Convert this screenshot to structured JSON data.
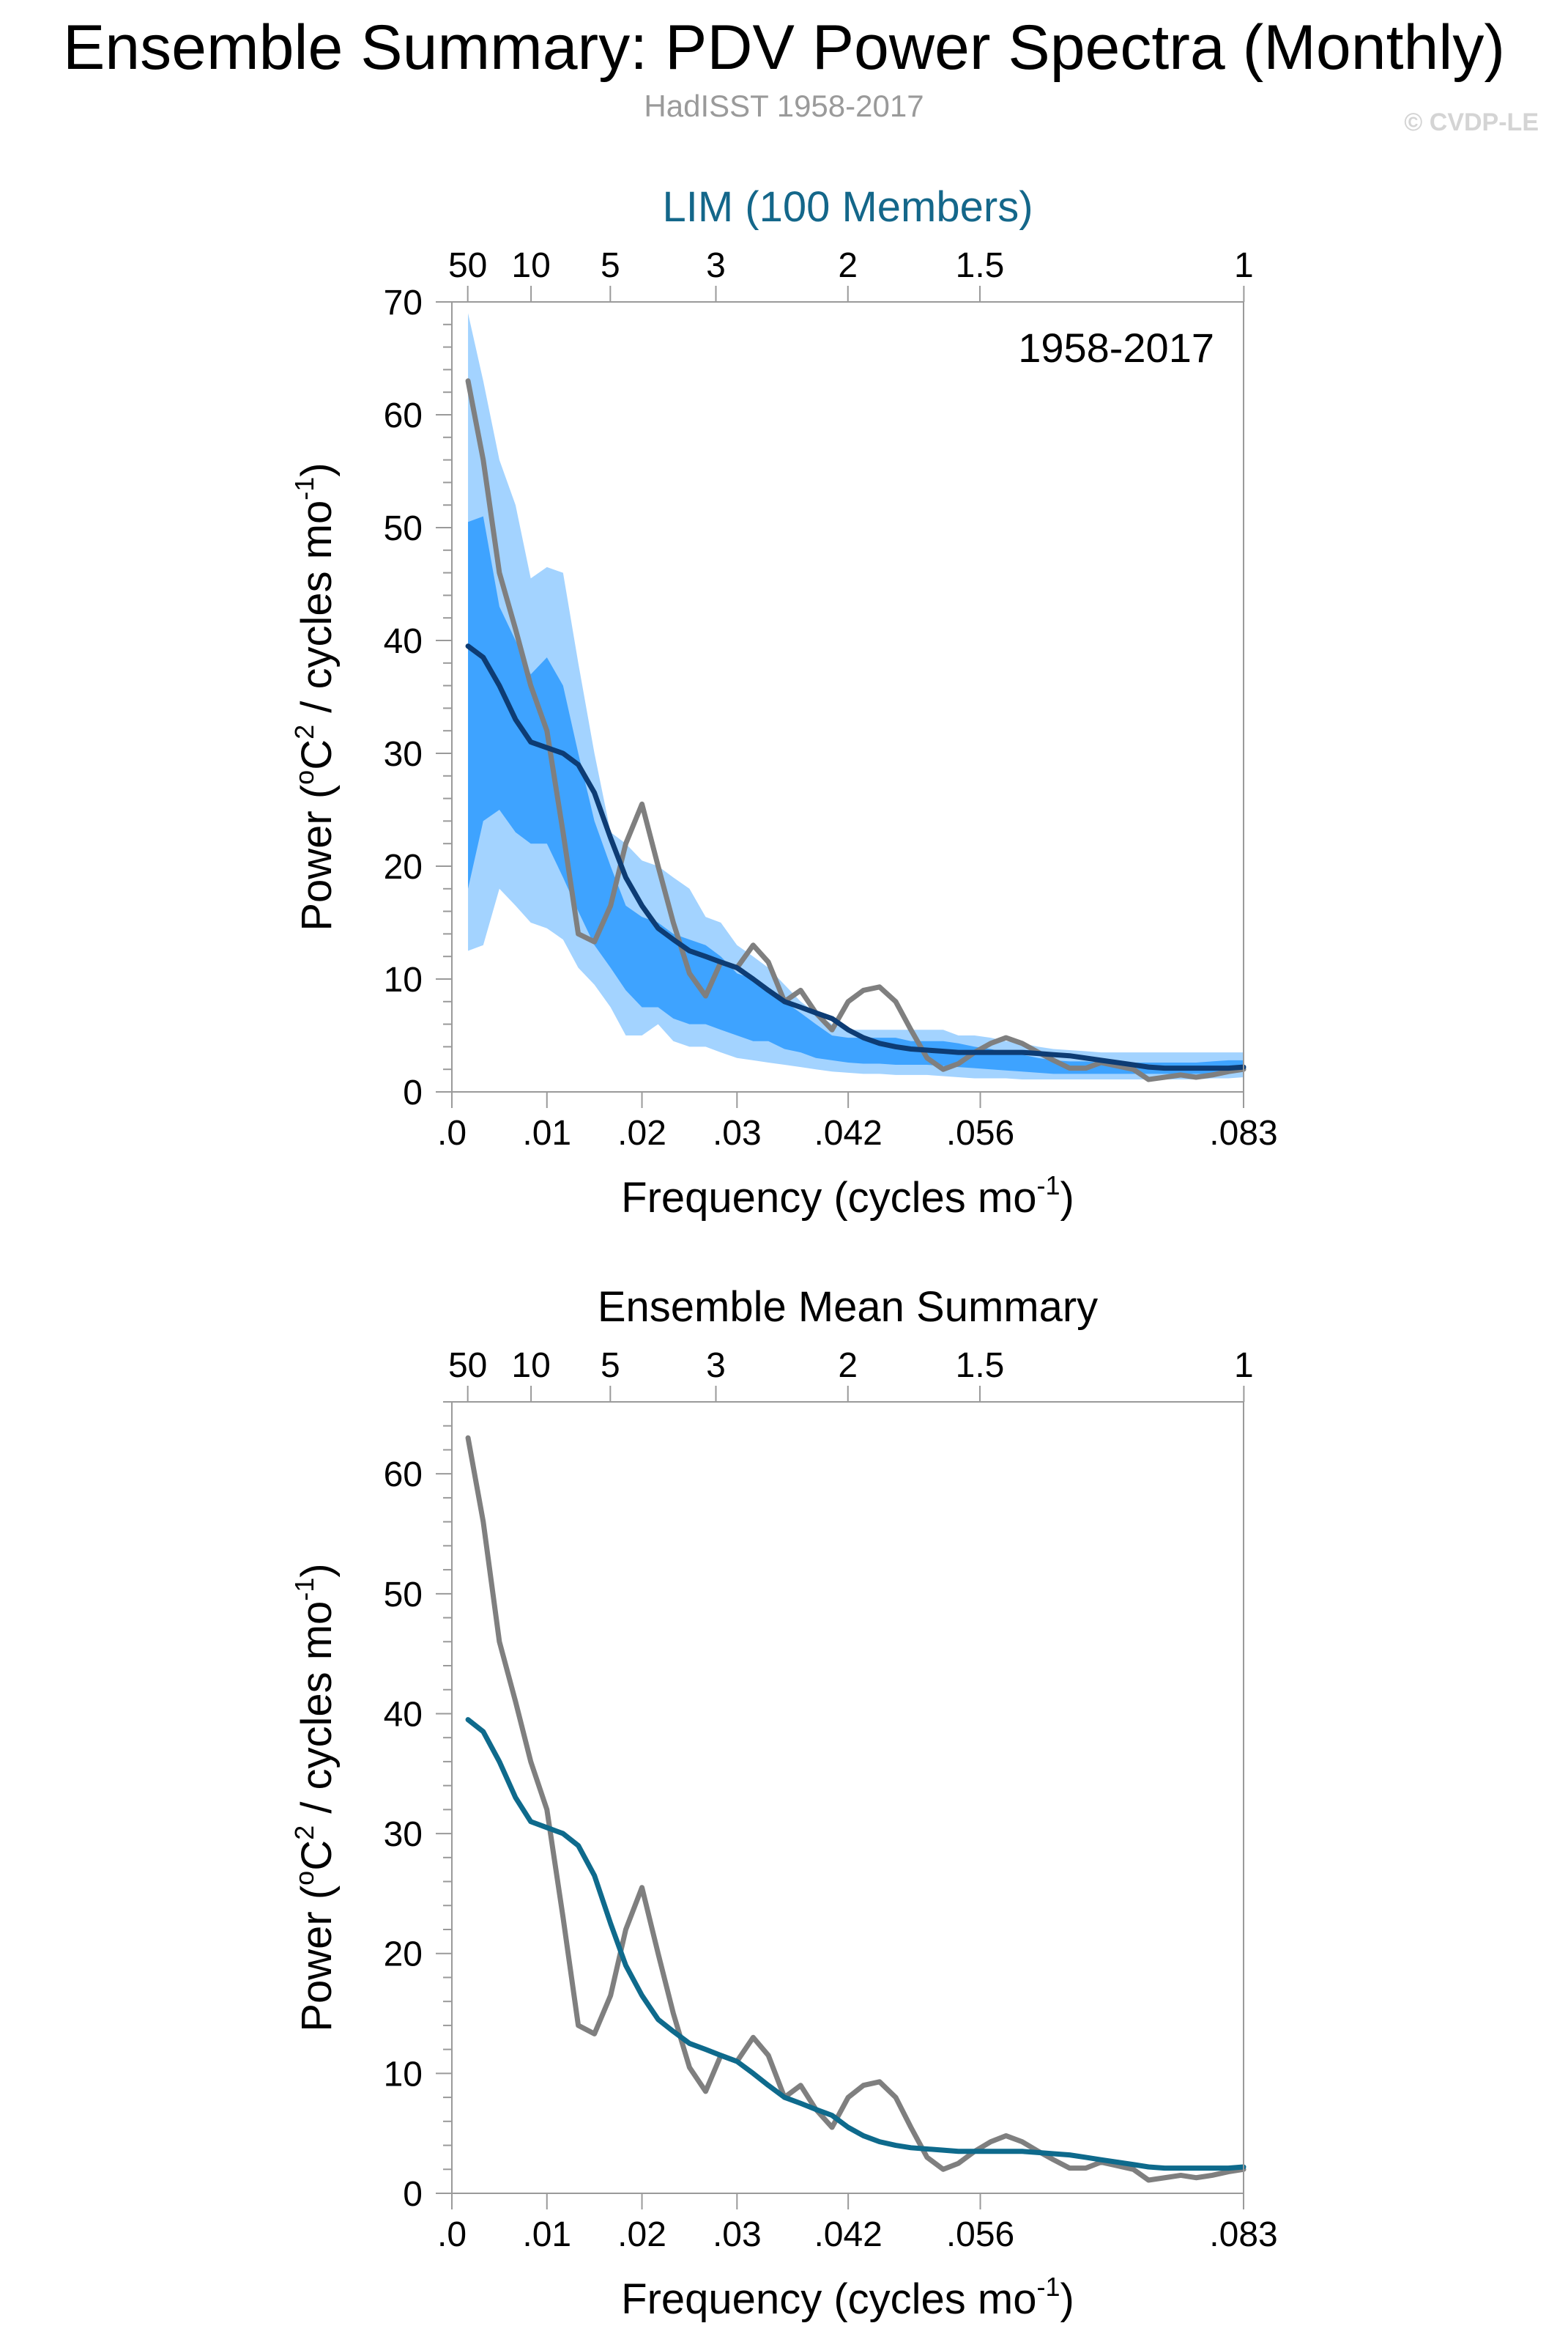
{
  "header": {
    "title": "Ensemble Summary: PDV Power Spectra (Monthly)",
    "subtitle": "HadISST 1958-2017",
    "copyright": "© CVDP-LE"
  },
  "colors": {
    "outer_band": "#a3d3ff",
    "inner_band": "#3ea3ff",
    "panel1_mean": "#0d3c74",
    "panel2_mean": "#0e6a8c",
    "observed": "#7f7f7f",
    "panel1_title": "#14678a"
  },
  "chart_data": [
    {
      "type": "line",
      "title": "LIM (100 Members)",
      "annotation": "1958-2017",
      "xlabel": "Frequency (cycles mo",
      "xlabel_sup": "-1",
      "xlabel_end": ")",
      "ylabel": "Power (",
      "ylabel_sup1": "o",
      "ylabel_mid": "C",
      "ylabel_sup2": "2",
      "ylabel_mid2": " / cycles mo",
      "ylabel_sup3": "-1",
      "ylabel_end": ")",
      "xlim": [
        0,
        0.0833
      ],
      "ylim": [
        0,
        70
      ],
      "x_ticks": [
        {
          "v": 0,
          "label": ".0"
        },
        {
          "v": 0.01,
          "label": ".01"
        },
        {
          "v": 0.02,
          "label": ".02"
        },
        {
          "v": 0.03,
          "label": ".03"
        },
        {
          "v": 0.0417,
          "label": ".042"
        },
        {
          "v": 0.0556,
          "label": ".056"
        },
        {
          "v": 0.0833,
          "label": ".083"
        }
      ],
      "top_ticks": [
        {
          "v": 0.00167,
          "label": "50"
        },
        {
          "v": 0.00833,
          "label": "10"
        },
        {
          "v": 0.01667,
          "label": "5"
        },
        {
          "v": 0.02778,
          "label": "3"
        },
        {
          "v": 0.04167,
          "label": "2"
        },
        {
          "v": 0.05556,
          "label": "1.5"
        },
        {
          "v": 0.08333,
          "label": "1"
        }
      ],
      "y_ticks": [
        0,
        10,
        20,
        30,
        40,
        50,
        60,
        70
      ],
      "x": [
        0.0017,
        0.0033,
        0.005,
        0.0067,
        0.0083,
        0.01,
        0.0117,
        0.0133,
        0.015,
        0.0167,
        0.0183,
        0.02,
        0.0217,
        0.0233,
        0.025,
        0.0267,
        0.0283,
        0.03,
        0.0317,
        0.0333,
        0.035,
        0.0367,
        0.0383,
        0.04,
        0.0417,
        0.0433,
        0.045,
        0.0467,
        0.0483,
        0.05,
        0.0517,
        0.0533,
        0.055,
        0.0567,
        0.0583,
        0.06,
        0.0617,
        0.0633,
        0.065,
        0.0667,
        0.0683,
        0.07,
        0.0717,
        0.0733,
        0.075,
        0.0767,
        0.0783,
        0.08,
        0.0817,
        0.0833
      ],
      "series": [
        {
          "role": "outer_upper",
          "values": [
            69,
            63,
            56,
            52,
            45.5,
            46.5,
            46,
            38,
            30,
            23,
            22,
            20.5,
            20,
            19,
            18,
            15.5,
            15,
            13,
            12,
            11,
            9.5,
            8,
            7,
            6,
            5.5,
            5.5,
            5.5,
            5.5,
            5.5,
            5.5,
            5.5,
            5,
            5,
            4.8,
            4.5,
            4.3,
            4,
            3.8,
            3.7,
            3.6,
            3.5,
            3.5,
            3.5,
            3.5,
            3.5,
            3.5,
            3.5,
            3.5,
            3.5,
            3.5
          ]
        },
        {
          "role": "inner_upper",
          "values": [
            50.5,
            51,
            43,
            40,
            37,
            38.5,
            36,
            30,
            24,
            20,
            16.5,
            15.5,
            15,
            14,
            13.5,
            13,
            12,
            10.5,
            10,
            9,
            8,
            7,
            6,
            5,
            4.8,
            4.8,
            4.8,
            4.8,
            4.5,
            4.5,
            4.5,
            4.3,
            4,
            3.8,
            3.5,
            3.3,
            3,
            2.8,
            2.7,
            2.7,
            2.6,
            2.6,
            2.6,
            2.6,
            2.6,
            2.6,
            2.6,
            2.7,
            2.8,
            2.8
          ]
        },
        {
          "role": "inner_lower",
          "values": [
            18,
            24,
            25,
            23,
            22,
            22,
            19,
            16,
            13,
            11,
            9,
            7.5,
            7.5,
            6.5,
            6,
            6,
            5.5,
            5,
            4.5,
            4.5,
            3.8,
            3.5,
            3,
            2.8,
            2.6,
            2.5,
            2.5,
            2.4,
            2.4,
            2.4,
            2.3,
            2.2,
            2.1,
            2,
            1.9,
            1.8,
            1.7,
            1.6,
            1.6,
            1.6,
            1.6,
            1.6,
            1.6,
            1.6,
            1.6,
            1.6,
            1.6,
            1.6,
            1.7,
            1.8
          ]
        },
        {
          "role": "outer_lower",
          "values": [
            12.5,
            13,
            18,
            16.5,
            15,
            14.5,
            13.5,
            11,
            9.5,
            7.5,
            5,
            5,
            6,
            4.5,
            4,
            4,
            3.5,
            3,
            2.8,
            2.6,
            2.4,
            2.2,
            2,
            1.8,
            1.7,
            1.6,
            1.6,
            1.5,
            1.5,
            1.5,
            1.4,
            1.3,
            1.2,
            1.2,
            1.2,
            1.1,
            1.1,
            1.1,
            1.1,
            1.1,
            1.1,
            1.1,
            1.1,
            1.1,
            1.1,
            1.1,
            1.1,
            1.2,
            1.2,
            1.3
          ]
        },
        {
          "role": "ensemble_mean",
          "values": [
            39.5,
            38.5,
            36,
            33,
            31,
            30.5,
            30,
            29,
            26.5,
            22.5,
            19,
            16.5,
            14.5,
            13.5,
            12.5,
            12,
            11.5,
            11,
            10,
            9,
            8,
            7.5,
            7,
            6.5,
            5.5,
            4.8,
            4.3,
            4,
            3.8,
            3.7,
            3.6,
            3.5,
            3.5,
            3.5,
            3.5,
            3.5,
            3.4,
            3.3,
            3.2,
            3.0,
            2.8,
            2.6,
            2.4,
            2.2,
            2.1,
            2.1,
            2.1,
            2.1,
            2.1,
            2.2
          ]
        },
        {
          "role": "observed",
          "values": [
            63,
            56,
            46,
            41,
            36,
            32,
            23,
            14,
            13.3,
            16.5,
            22,
            25.5,
            20,
            15,
            10.5,
            8.5,
            11.5,
            11,
            13,
            11.5,
            8,
            9,
            7,
            5.5,
            8,
            9,
            9.3,
            8,
            5.5,
            3,
            2,
            2.5,
            3.5,
            4.3,
            4.8,
            4.3,
            3.5,
            2.8,
            2.1,
            2.1,
            2.6,
            2.3,
            2,
            1.1,
            1.3,
            1.5,
            1.3,
            1.5,
            1.8,
            2
          ]
        }
      ]
    },
    {
      "type": "line",
      "title": "Ensemble Mean Summary",
      "xlabel": "Frequency (cycles mo",
      "xlabel_sup": "-1",
      "xlabel_end": ")",
      "ylabel": "Power (",
      "ylabel_sup1": "o",
      "ylabel_mid": "C",
      "ylabel_sup2": "2",
      "ylabel_mid2": " / cycles mo",
      "ylabel_sup3": "-1",
      "ylabel_end": ")",
      "xlim": [
        0,
        0.0833
      ],
      "ylim": [
        0,
        66
      ],
      "x_ticks": [
        {
          "v": 0,
          "label": ".0"
        },
        {
          "v": 0.01,
          "label": ".01"
        },
        {
          "v": 0.02,
          "label": ".02"
        },
        {
          "v": 0.03,
          "label": ".03"
        },
        {
          "v": 0.0417,
          "label": ".042"
        },
        {
          "v": 0.0556,
          "label": ".056"
        },
        {
          "v": 0.0833,
          "label": ".083"
        }
      ],
      "top_ticks": [
        {
          "v": 0.00167,
          "label": "50"
        },
        {
          "v": 0.00833,
          "label": "10"
        },
        {
          "v": 0.01667,
          "label": "5"
        },
        {
          "v": 0.02778,
          "label": "3"
        },
        {
          "v": 0.04167,
          "label": "2"
        },
        {
          "v": 0.05556,
          "label": "1.5"
        },
        {
          "v": 0.08333,
          "label": "1"
        }
      ],
      "y_ticks": [
        0,
        10,
        20,
        30,
        40,
        50,
        60
      ],
      "x": [
        0.0017,
        0.0033,
        0.005,
        0.0067,
        0.0083,
        0.01,
        0.0117,
        0.0133,
        0.015,
        0.0167,
        0.0183,
        0.02,
        0.0217,
        0.0233,
        0.025,
        0.0267,
        0.0283,
        0.03,
        0.0317,
        0.0333,
        0.035,
        0.0367,
        0.0383,
        0.04,
        0.0417,
        0.0433,
        0.045,
        0.0467,
        0.0483,
        0.05,
        0.0517,
        0.0533,
        0.055,
        0.0567,
        0.0583,
        0.06,
        0.0617,
        0.0633,
        0.065,
        0.0667,
        0.0683,
        0.07,
        0.0717,
        0.0733,
        0.075,
        0.0767,
        0.0783,
        0.08,
        0.0817,
        0.0833
      ],
      "series": [
        {
          "role": "ensemble_mean",
          "values": [
            39.5,
            38.5,
            36,
            33,
            31,
            30.5,
            30,
            29,
            26.5,
            22.5,
            19,
            16.5,
            14.5,
            13.5,
            12.5,
            12,
            11.5,
            11,
            10,
            9,
            8,
            7.5,
            7,
            6.5,
            5.5,
            4.8,
            4.3,
            4,
            3.8,
            3.7,
            3.6,
            3.5,
            3.5,
            3.5,
            3.5,
            3.5,
            3.4,
            3.3,
            3.2,
            3.0,
            2.8,
            2.6,
            2.4,
            2.2,
            2.1,
            2.1,
            2.1,
            2.1,
            2.1,
            2.2
          ]
        },
        {
          "role": "observed",
          "values": [
            63,
            56,
            46,
            41,
            36,
            32,
            23,
            14,
            13.3,
            16.5,
            22,
            25.5,
            20,
            15,
            10.5,
            8.5,
            11.5,
            11,
            13,
            11.5,
            8,
            9,
            7,
            5.5,
            8,
            9,
            9.3,
            8,
            5.5,
            3,
            2,
            2.5,
            3.5,
            4.3,
            4.8,
            4.3,
            3.5,
            2.8,
            2.1,
            2.1,
            2.6,
            2.3,
            2,
            1.1,
            1.3,
            1.5,
            1.3,
            1.5,
            1.8,
            2
          ]
        }
      ]
    }
  ]
}
